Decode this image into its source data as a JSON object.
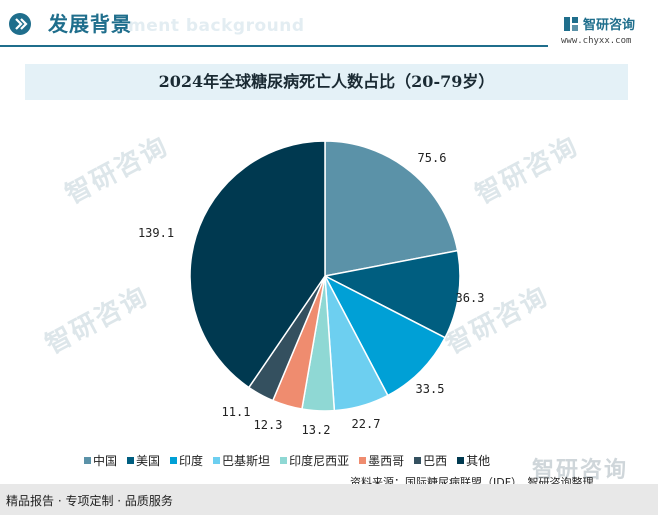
{
  "header": {
    "title": "发展背景",
    "ghost": "ment background",
    "brand_name": "智研咨询",
    "brand_url": "www.chyxx.com"
  },
  "watermark_text": "智研咨询",
  "chart_data": {
    "type": "pie",
    "title": "2024年全球糖尿病死亡人数占比（20-79岁）",
    "categories": [
      "中国",
      "美国",
      "印度",
      "巴基斯坦",
      "印度尼西亚",
      "墨西哥",
      "巴西",
      "其他"
    ],
    "values": [
      75.6,
      36.3,
      33.5,
      22.7,
      13.2,
      12.3,
      11.1,
      139.1
    ],
    "value_labels": [
      "75.6",
      "36.3",
      "33.5",
      "22.7",
      "13.2",
      "12.3",
      "11.1",
      "139.1"
    ],
    "colors": [
      "#5b92a8",
      "#005e80",
      "#00a0d6",
      "#6dcff0",
      "#8fd8d4",
      "#ef8c6f",
      "#34505f",
      "#003950"
    ],
    "legend_position": "bottom"
  },
  "source": "资料来源：国际糖尿病联盟（IDF）、智研咨询整理",
  "footer": "精品报告 · 专项定制 · 品质服务"
}
